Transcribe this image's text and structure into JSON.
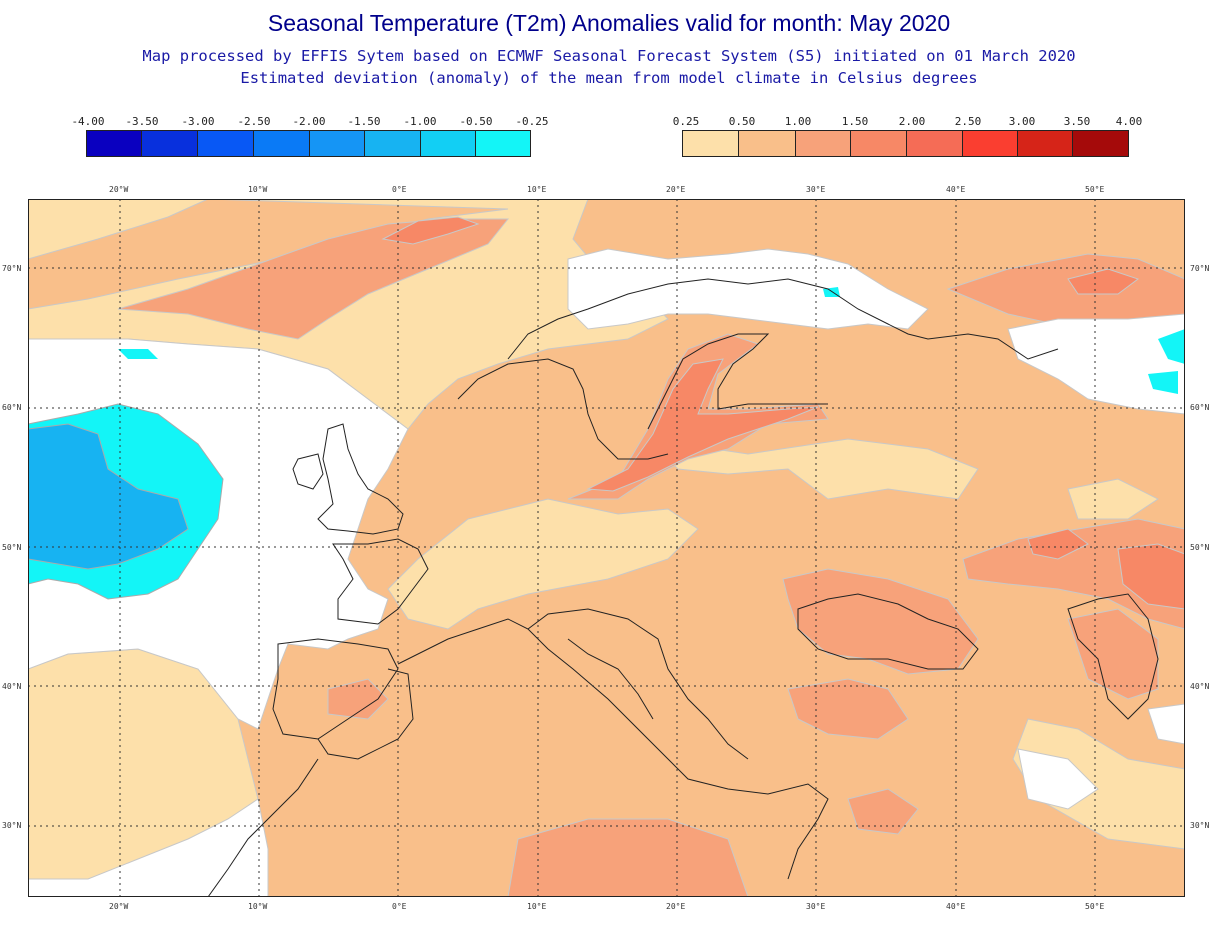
{
  "title": "Seasonal Temperature (T2m) Anomalies valid for month: May 2020",
  "subtitle_1": "Map processed by EFFIS Sytem based on ECMWF Seasonal Forecast System (S5) initiated on 01 March 2020",
  "subtitle_2": "Estimated deviation (anomaly) of the mean from model climate in Celsius degrees",
  "legend_negative": {
    "labels": [
      "-4.00",
      "-3.50",
      "-3.00",
      "-2.50",
      "-2.00",
      "-1.50",
      "-1.00",
      "-0.50",
      "-0.25"
    ],
    "colors": [
      "#0a00c0",
      "#0830dd",
      "#0858f5",
      "#0a7af6",
      "#1595f5",
      "#17b3f2",
      "#12cff4",
      "#13f5f7"
    ]
  },
  "legend_positive": {
    "labels": [
      "0.25",
      "0.50",
      "1.00",
      "1.50",
      "2.00",
      "2.50",
      "3.00",
      "3.50",
      "4.00"
    ],
    "colors": [
      "#fde0aa",
      "#f9bf8a",
      "#f7a27a",
      "#f78866",
      "#f56c56",
      "#fa3e30",
      "#d62418",
      "#a50a0a"
    ]
  },
  "lon_labels": [
    "20°W",
    "10°W",
    "0°E",
    "10°E",
    "20°E",
    "30°E",
    "40°E",
    "50°E"
  ],
  "lat_labels": [
    "70°N",
    "60°N",
    "50°N",
    "40°N",
    "30°N"
  ],
  "map": {
    "lon_range": [
      -25.6,
      57.3
    ],
    "lat_range": [
      25.0,
      74.8
    ],
    "base_anomaly_color": "#f9bf8a",
    "no_signal_color": "#ffffff"
  }
}
